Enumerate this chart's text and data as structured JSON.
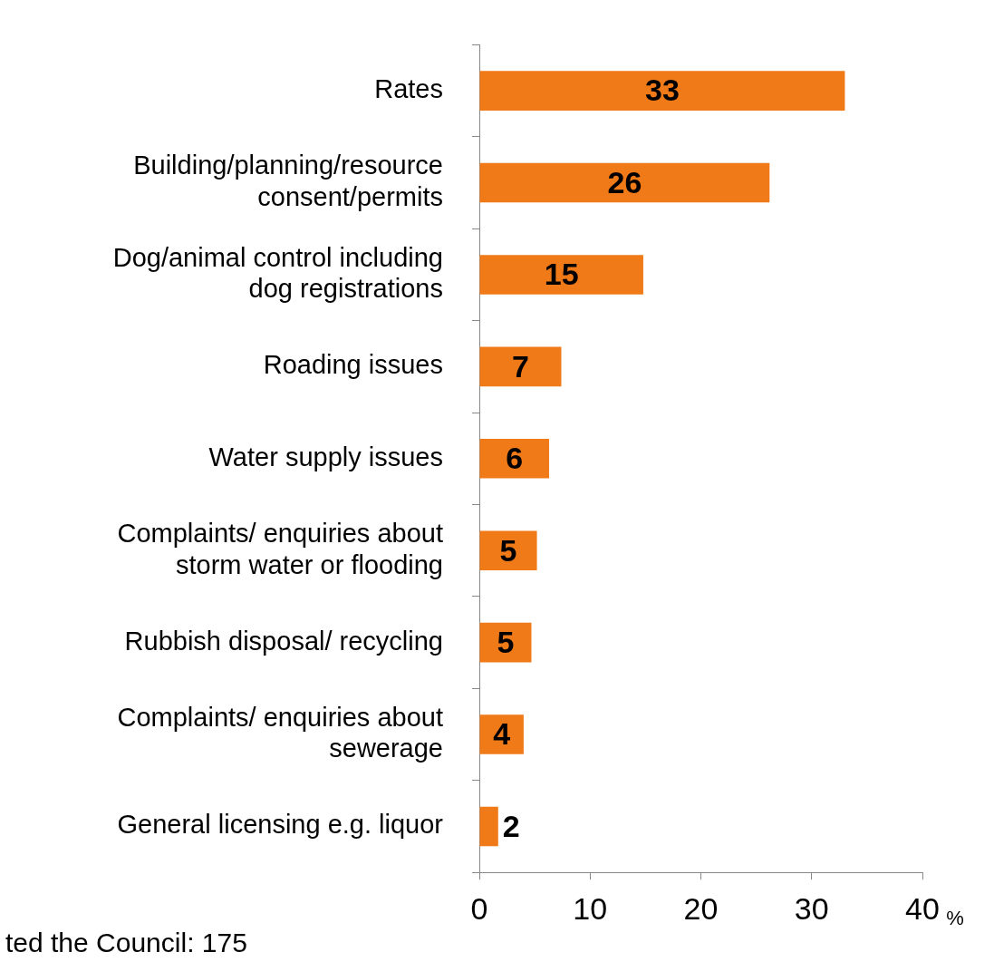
{
  "chart_data": {
    "type": "bar",
    "orientation": "horizontal",
    "categories": [
      "Rates",
      "Building/planning/resource consent/permits",
      "Dog/animal control including dog registrations",
      "Roading issues",
      "Water supply issues",
      "Complaints/ enquiries about storm water or flooding",
      "Rubbish disposal/ recycling",
      "Complaints/ enquiries about sewerage",
      "General licensing e.g. liquor"
    ],
    "values": [
      33,
      26.2,
      14.8,
      7.4,
      6.3,
      5.2,
      4.7,
      4.0,
      1.7
    ],
    "value_labels": [
      "33",
      "26",
      "15",
      "7",
      "6",
      "5",
      "5",
      "4",
      "2"
    ],
    "color": "#f07a18",
    "xlim": [
      0,
      40
    ],
    "xticks": [
      0,
      10,
      20,
      30,
      40
    ],
    "xlabel": "%",
    "grid": false,
    "legend": false,
    "annotations": [
      "ted the Council: 175"
    ]
  }
}
